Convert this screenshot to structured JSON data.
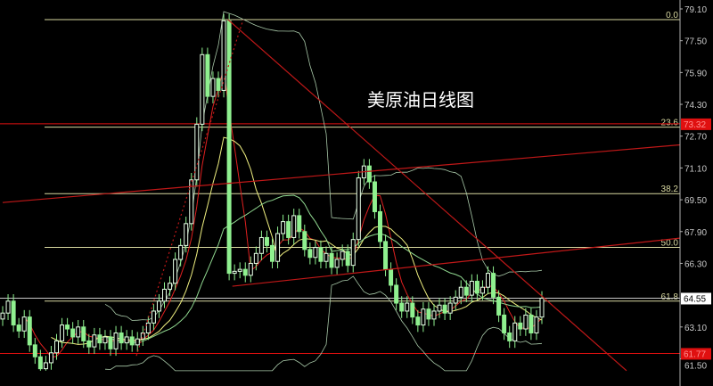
{
  "chart_data": {
    "type": "candlestick",
    "title": "美原油日线图",
    "ylim": [
      60.9,
      79.5
    ],
    "y_ticks": [
      "79.10",
      "77.50",
      "75.90",
      "74.30",
      "72.70",
      "71.10",
      "69.50",
      "67.90",
      "66.30",
      "63.10",
      "61.50"
    ],
    "first_open": 63.5,
    "closes": [
      63.8,
      64.4,
      63.2,
      62.9,
      63.6,
      62.2,
      61.6,
      61.0,
      61.3,
      61.8,
      62.4,
      63.2,
      63.0,
      62.6,
      63.1,
      62.4,
      62.1,
      62.7,
      62.3,
      62.6,
      62.0,
      62.8,
      62.3,
      62.6,
      62.2,
      62.5,
      62.8,
      63.3,
      63.9,
      64.4,
      65.0,
      65.3,
      66.5,
      67.2,
      68.3,
      70.5,
      73.3,
      76.8,
      74.7,
      75.6,
      75.0,
      78.5,
      65.8,
      65.9,
      66.0,
      65.7,
      66.3,
      66.8,
      67.6,
      67.2,
      66.4,
      67.8,
      68.4,
      67.6,
      68.7,
      67.9,
      67.0,
      66.6,
      67.1,
      66.4,
      66.8,
      66.1,
      66.5,
      66.9,
      66.2,
      67.5,
      70.6,
      71.2,
      70.4,
      68.9,
      67.4,
      66.0,
      65.2,
      64.3,
      63.9,
      64.3,
      63.6,
      63.2,
      64.0,
      63.5,
      63.9,
      64.2,
      63.8,
      64.3,
      64.6,
      65.1,
      64.7,
      65.4,
      64.8,
      65.1,
      65.8,
      64.6,
      63.7,
      62.8,
      62.4,
      63.3,
      63.0,
      63.7,
      62.8,
      63.6,
      64.55
    ],
    "moving_averages": [
      {
        "period": 5,
        "color": "#e02020"
      },
      {
        "period": 10,
        "color": "#f0f080"
      },
      {
        "period": 20,
        "color": "#90d890"
      }
    ],
    "bollinger": {
      "period": 20,
      "color": "#a8c8a8"
    },
    "fibonacci": {
      "high": 78.56,
      "low": 55.65,
      "color": "#d8d8a0",
      "levels": [
        {
          "ratio": 0.0,
          "label": "0.0"
        },
        {
          "ratio": 0.236,
          "label": "23.6"
        },
        {
          "ratio": 0.382,
          "label": "38.2"
        },
        {
          "ratio": 0.5,
          "label": "50.0"
        },
        {
          "ratio": 0.618,
          "label": "61.8"
        }
      ]
    },
    "price_lines": [
      {
        "price": 73.32,
        "label": "73.32",
        "color": "#e01010",
        "badge_bg": "#e01010",
        "badge_fg": "#ff9090"
      },
      {
        "price": 61.77,
        "label": "61.77",
        "color": "#e01010",
        "badge_bg": "#e01010",
        "badge_fg": "#ff9090"
      },
      {
        "price": 64.55,
        "label": "64.55",
        "color": "#c8c8c8",
        "badge_bg": "#ffffff",
        "badge_fg": "#000000"
      }
    ],
    "trendlines": [
      {
        "from": [
          41.8,
          78.56
        ],
        "to": [
          115.7,
          60.2
        ],
        "style": "solid"
      },
      {
        "from": [
          0,
          69.36
        ],
        "to": [
          125.6,
          72.26
        ],
        "style": "solid"
      },
      {
        "from": [
          42.6,
          65.15
        ],
        "to": [
          125.6,
          67.57
        ],
        "style": "solid"
      },
      {
        "from": [
          24.8,
          61.65
        ],
        "to": [
          44.6,
          78.56
        ],
        "style": "dotted"
      }
    ],
    "candle_color": "#8ff08f",
    "trendline_color": "#c01818"
  }
}
